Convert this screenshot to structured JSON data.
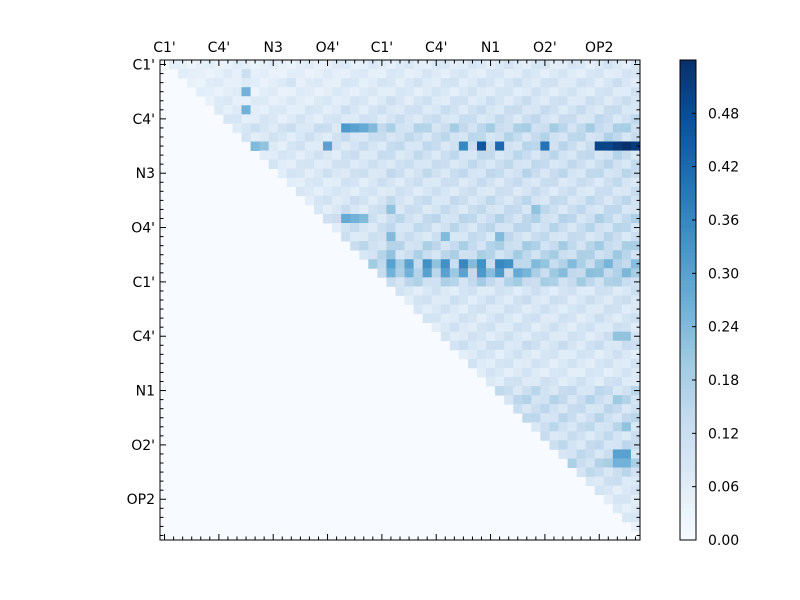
{
  "chart_data": {
    "type": "heatmap",
    "title": "",
    "xlabel": "",
    "ylabel": "",
    "n": 53,
    "x_tick_labels": [
      "C1'",
      "C4'",
      "N3",
      "O4'",
      "C1'",
      "C4'",
      "N1",
      "O2'",
      "OP2"
    ],
    "y_tick_labels": [
      "C1'",
      "C4'",
      "N3",
      "O4'",
      "C1'",
      "C4'",
      "N1",
      "O2'",
      "OP2"
    ],
    "labeled_indices": [
      0,
      6,
      12,
      18,
      24,
      30,
      36,
      42,
      48
    ],
    "colorbar_ticks": [
      "0.00",
      "0.06",
      "0.12",
      "0.18",
      "0.24",
      "0.30",
      "0.36",
      "0.42",
      "0.48"
    ],
    "colorbar_values": [
      0.0,
      0.06,
      0.12,
      0.18,
      0.24,
      0.3,
      0.36,
      0.42,
      0.48
    ],
    "vmin": 0.0,
    "vmax": 0.54,
    "colormap": "Blues",
    "colormap_stops": [
      "#f7fbff",
      "#deebf7",
      "#c6dbef",
      "#9ecae1",
      "#6baed6",
      "#4292c6",
      "#2171b5",
      "#08519c",
      "#08306b"
    ],
    "row_profile": [
      0.05,
      0.05,
      0.07,
      0.06,
      0.08,
      0.1,
      0.11,
      0.2,
      0.15,
      0.14,
      0.13,
      0.12,
      0.13,
      0.1,
      0.09,
      0.12,
      0.12,
      0.16,
      0.14,
      0.12,
      0.2,
      0.2,
      0.32,
      0.31,
      0.21,
      0.07,
      0.08,
      0.07,
      0.07,
      0.07,
      0.07,
      0.09,
      0.06,
      0.06,
      0.05,
      0.07,
      0.12,
      0.15,
      0.12,
      0.13,
      0.13,
      0.1,
      0.12,
      0.13,
      0.18,
      0.12,
      0.08,
      0.05,
      0.05,
      0.04,
      0.04,
      0.03,
      0.02
    ],
    "col_profile": [
      0.05,
      0.05,
      0.08,
      0.05,
      0.06,
      0.07,
      0.08,
      0.09,
      0.08,
      0.07,
      0.07,
      0.08,
      0.08,
      0.07,
      0.08,
      0.09,
      0.09,
      0.09,
      0.1,
      0.1,
      0.13,
      0.13,
      0.12,
      0.12,
      0.14,
      0.17,
      0.15,
      0.14,
      0.16,
      0.17,
      0.16,
      0.16,
      0.18,
      0.17,
      0.18,
      0.18,
      0.19,
      0.18,
      0.19,
      0.19,
      0.21,
      0.2,
      0.19,
      0.19,
      0.19,
      0.18,
      0.18,
      0.19,
      0.2,
      0.21,
      0.21,
      0.2,
      0.2
    ],
    "highlights": [
      [
        1,
        2,
        0.06
      ],
      [
        1,
        9,
        0.12
      ],
      [
        2,
        14,
        0.1
      ],
      [
        3,
        9,
        0.26
      ],
      [
        5,
        9,
        0.26
      ],
      [
        7,
        20,
        0.32
      ],
      [
        7,
        21,
        0.3
      ],
      [
        7,
        22,
        0.28
      ],
      [
        7,
        23,
        0.24
      ],
      [
        9,
        10,
        0.24
      ],
      [
        9,
        11,
        0.22
      ],
      [
        9,
        18,
        0.3
      ],
      [
        9,
        33,
        0.36
      ],
      [
        9,
        35,
        0.46
      ],
      [
        9,
        37,
        0.42
      ],
      [
        9,
        42,
        0.4
      ],
      [
        9,
        48,
        0.5
      ],
      [
        9,
        49,
        0.5
      ],
      [
        9,
        50,
        0.52
      ],
      [
        9,
        51,
        0.54
      ],
      [
        9,
        52,
        0.52
      ],
      [
        16,
        25,
        0.22
      ],
      [
        16,
        41,
        0.22
      ],
      [
        17,
        20,
        0.28
      ],
      [
        17,
        21,
        0.26
      ],
      [
        17,
        22,
        0.24
      ],
      [
        19,
        25,
        0.24
      ],
      [
        19,
        31,
        0.24
      ],
      [
        19,
        37,
        0.24
      ],
      [
        21,
        25,
        0.22
      ],
      [
        22,
        25,
        0.3
      ],
      [
        22,
        27,
        0.3
      ],
      [
        22,
        29,
        0.34
      ],
      [
        22,
        31,
        0.34
      ],
      [
        22,
        33,
        0.36
      ],
      [
        22,
        35,
        0.34
      ],
      [
        22,
        37,
        0.36
      ],
      [
        22,
        38,
        0.34
      ],
      [
        23,
        25,
        0.26
      ],
      [
        23,
        27,
        0.26
      ],
      [
        23,
        29,
        0.3
      ],
      [
        23,
        31,
        0.3
      ],
      [
        23,
        33,
        0.3
      ],
      [
        23,
        35,
        0.32
      ],
      [
        23,
        37,
        0.32
      ],
      [
        23,
        39,
        0.28
      ],
      [
        24,
        50,
        0.18
      ],
      [
        30,
        50,
        0.22
      ],
      [
        30,
        51,
        0.22
      ],
      [
        37,
        50,
        0.2
      ],
      [
        40,
        51,
        0.22
      ],
      [
        43,
        50,
        0.3
      ],
      [
        43,
        51,
        0.3
      ],
      [
        44,
        50,
        0.26
      ],
      [
        44,
        51,
        0.26
      ]
    ]
  }
}
